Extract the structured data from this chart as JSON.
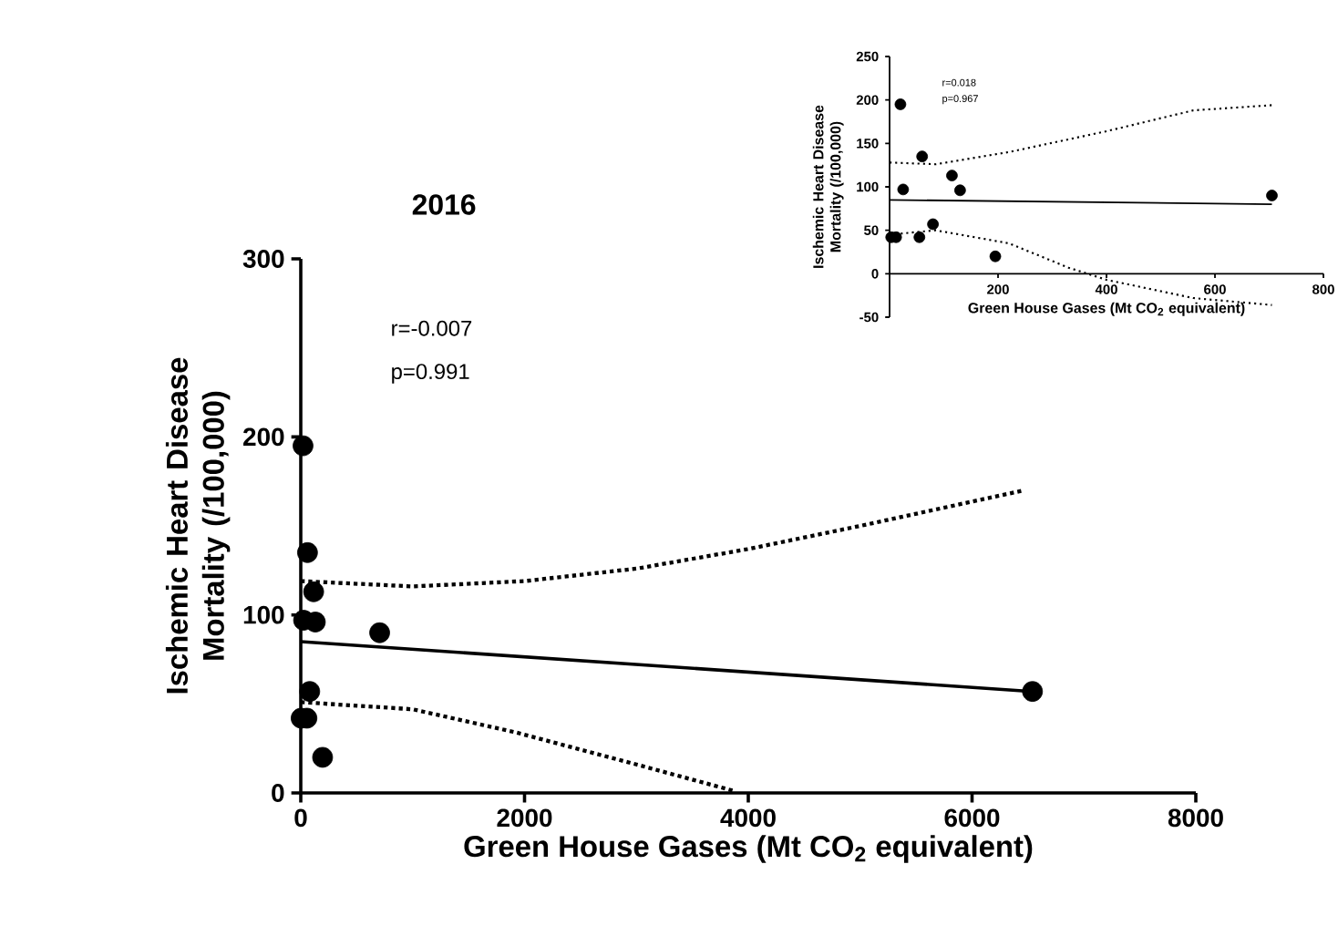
{
  "chart_data": [
    {
      "type": "scatter",
      "title": "2016",
      "xlabel": "Green House Gases (Mt CO$_{2}$ equivalent)",
      "ylabel": "Ischemic Heart Disease Mortality (/100,000)",
      "annotations": [
        "r=-0.007",
        "p=0.991"
      ],
      "xlim": [
        0,
        8000
      ],
      "ylim": [
        0,
        300
      ],
      "xticks": [
        0,
        2000,
        4000,
        6000,
        8000
      ],
      "yticks": [
        0,
        100,
        200,
        300
      ],
      "series": [
        {
          "color": "#000000",
          "marker": "circle",
          "x": [
            3,
            12,
            20,
            25,
            55,
            60,
            80,
            115,
            130,
            195,
            705,
            6540
          ],
          "values": [
            42,
            null,
            195,
            97,
            42,
            135,
            57,
            113,
            96,
            20,
            90,
            57
          ]
        },
        {
          "type": "line",
          "color": "#000000",
          "marker": "none",
          "line_style": "solid",
          "x": [
            0,
            6540
          ],
          "values": [
            85,
            57
          ]
        },
        {
          "type": "line",
          "color": "#000000",
          "marker": "none",
          "line_style": "dotted",
          "x": [
            0,
            1000,
            2000,
            3000,
            4000,
            5000,
            6466
          ],
          "values": [
            119,
            116,
            119,
            126,
            137,
            150,
            170
          ]
        },
        {
          "type": "line",
          "color": "#000000",
          "marker": "none",
          "line_style": "dotted",
          "x": [
            0,
            1000,
            1923,
            3000,
            3880
          ],
          "values": [
            51,
            47,
            34,
            16,
            1
          ]
        }
      ]
    },
    {
      "type": "scatter",
      "xlabel": "Green House Gases (Mt CO$_{2}$ equivalent)",
      "ylabel": "Ischemic Heart Disease Mortality (/100,000)",
      "annotations": [
        "r=0.018",
        "p=0.967"
      ],
      "xlim": [
        0,
        800
      ],
      "ylim": [
        -50,
        250
      ],
      "xticks": [
        200,
        400,
        600,
        800
      ],
      "yticks": [
        -50,
        0,
        50,
        100,
        150,
        200,
        250
      ],
      "series": [
        {
          "color": "#000000",
          "marker": "circle",
          "x": [
            3,
            12,
            20,
            25,
            55,
            60,
            80,
            115,
            130,
            195,
            705
          ],
          "values": [
            42,
            42,
            195,
            97,
            42,
            135,
            57,
            113,
            96,
            20,
            90
          ]
        },
        {
          "type": "line",
          "color": "#000000",
          "marker": "none",
          "line_style": "solid",
          "x": [
            0,
            705
          ],
          "values": [
            85,
            80
          ]
        },
        {
          "type": "line",
          "color": "#000000",
          "marker": "none",
          "line_style": "dotted",
          "x": [
            0,
            85,
            220,
            400,
            560,
            705
          ],
          "values": [
            128,
            126,
            140,
            164,
            188,
            194
          ]
        },
        {
          "type": "line",
          "color": "#000000",
          "marker": "none",
          "line_style": "dotted",
          "x": [
            0,
            85,
            220,
            330,
            400,
            560,
            705
          ],
          "values": [
            45,
            50,
            35,
            7,
            -7,
            -28,
            -36
          ]
        }
      ]
    }
  ]
}
